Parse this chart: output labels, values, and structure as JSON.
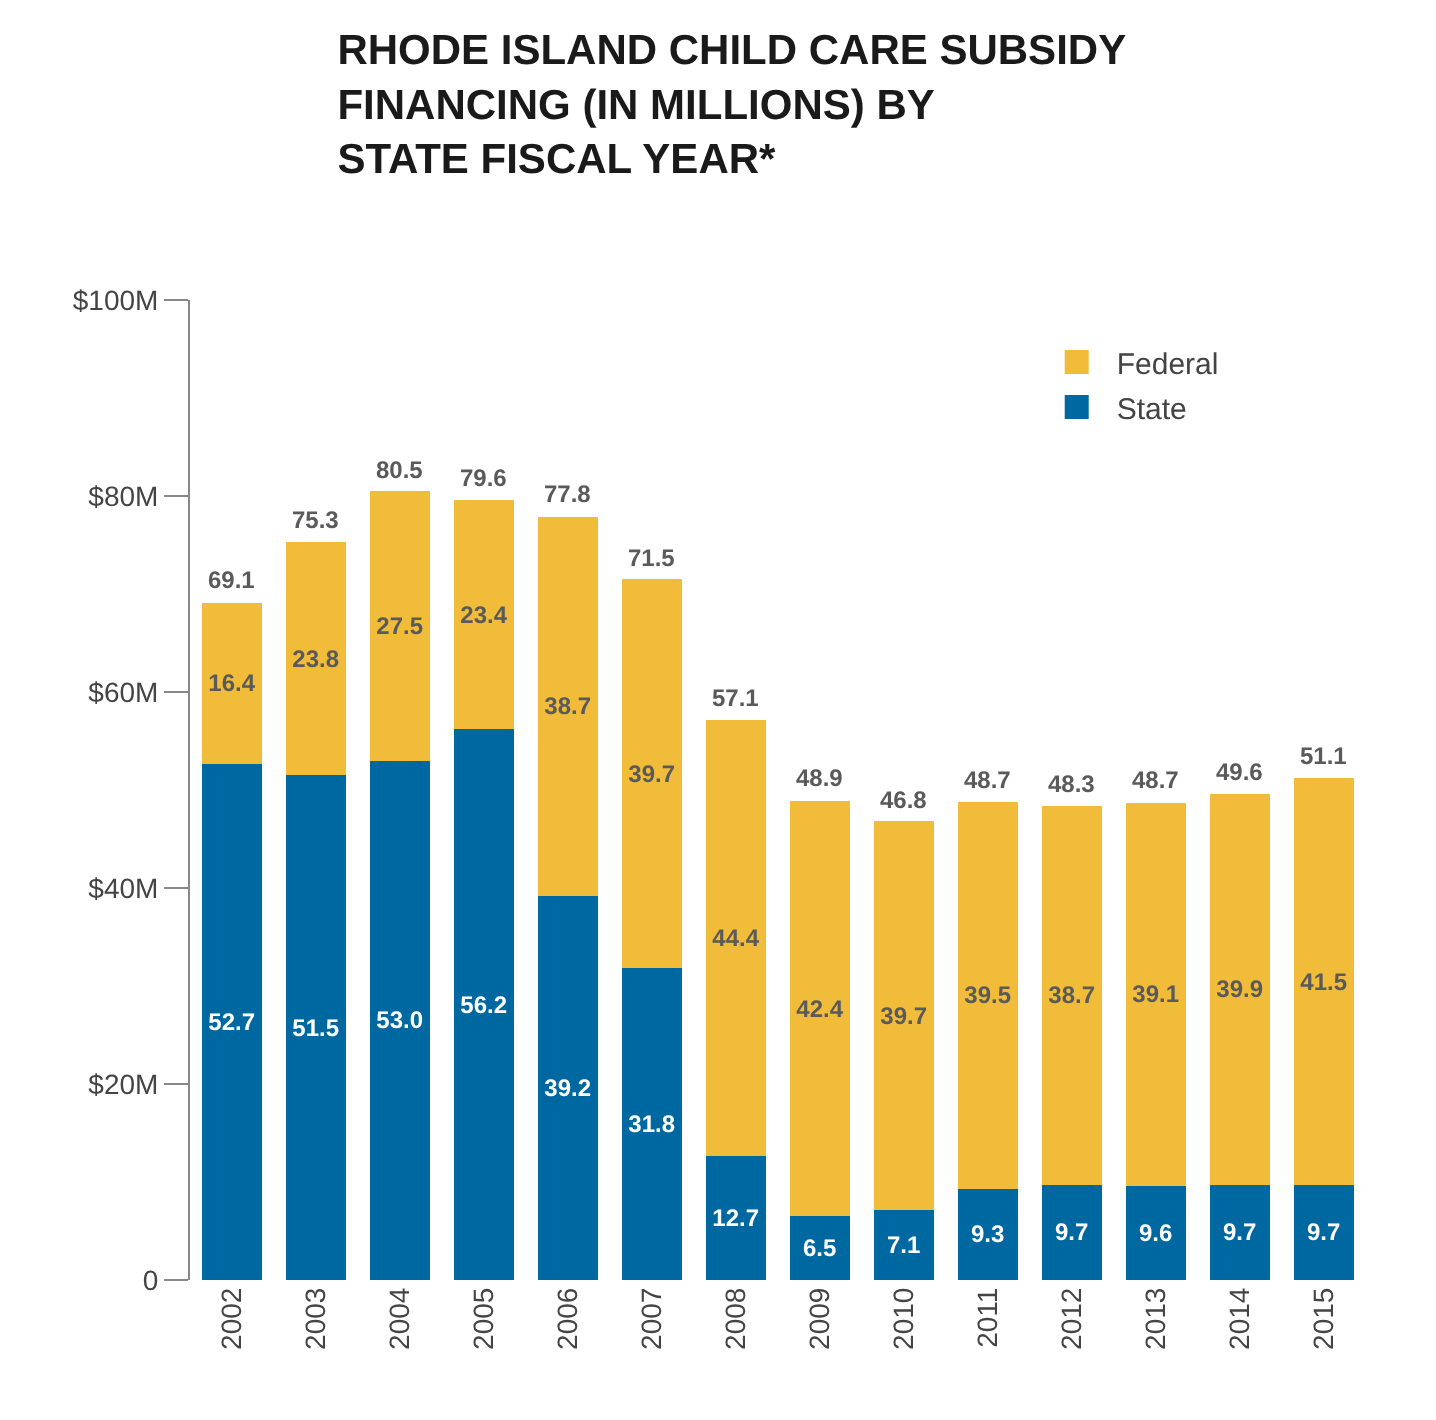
{
  "chart_data": {
    "type": "bar",
    "title": "RHODE ISLAND CHILD CARE SUBSIDY\nFINANCING (IN MILLIONS) BY\nSTATE FISCAL YEAR*",
    "categories": [
      "2002",
      "2003",
      "2004",
      "2005",
      "2006",
      "2007",
      "2008",
      "2009",
      "2010",
      "2011",
      "2012",
      "2013",
      "2014",
      "2015"
    ],
    "stacked": true,
    "series": [
      {
        "name": "State",
        "color": "#0068a0",
        "values": [
          52.7,
          51.5,
          53.0,
          56.2,
          39.2,
          31.8,
          12.7,
          6.5,
          7.1,
          9.3,
          9.7,
          9.6,
          9.7,
          9.7
        ],
        "value_labels": [
          "52.7",
          "51.5",
          "53.0",
          "56.2",
          "39.2",
          "31.8",
          "12.7",
          "6.5",
          "7.1",
          "9.3",
          "9.7",
          "9.6",
          "9.7",
          "9.7"
        ]
      },
      {
        "name": "Federal",
        "color": "#f0bc3a",
        "values": [
          16.4,
          23.8,
          27.5,
          23.4,
          38.7,
          39.7,
          44.4,
          42.4,
          39.7,
          39.5,
          38.7,
          39.1,
          39.9,
          41.5
        ],
        "value_labels": [
          "16.4",
          "23.8",
          "27.5",
          "23.4",
          "38.7",
          "39.7",
          "44.4",
          "42.4",
          "39.7",
          "39.5",
          "38.7",
          "39.1",
          "39.9",
          "41.5"
        ]
      }
    ],
    "totals": [
      "69.1",
      "75.3",
      "80.5",
      "79.6",
      "77.8",
      "71.5",
      "57.1",
      "48.9",
      "46.8",
      "48.7",
      "48.3",
      "48.7",
      "49.6",
      "51.1"
    ],
    "ylim": [
      0,
      100
    ],
    "yticks": [
      0,
      {
        "value": 20,
        "label": "$20M"
      },
      {
        "value": 40,
        "label": "$40M"
      },
      {
        "value": 60,
        "label": "$60M"
      },
      {
        "value": 80,
        "label": "$80M"
      },
      {
        "value": 100,
        "label": "$100M"
      }
    ],
    "legend": "top right"
  }
}
